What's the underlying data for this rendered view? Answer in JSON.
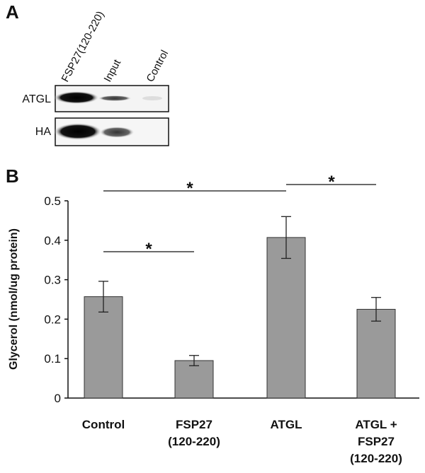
{
  "panel_a": {
    "label": "A",
    "columns": [
      "FSP27(120-220)",
      "Input",
      "Control"
    ],
    "rows": [
      "ATGL",
      "HA"
    ]
  },
  "chart_data": {
    "type": "bar",
    "panel_label": "B",
    "y_label": "Glycerol (nmol/ug protein)",
    "categories": [
      "Control",
      "FSP27\n(120-220)",
      "ATGL",
      "ATGL +\nFSP27\n(120-220)"
    ],
    "values": [
      0.257,
      0.095,
      0.407,
      0.225
    ],
    "errors": [
      0.039,
      0.013,
      0.053,
      0.03
    ],
    "color": "#9a9a9a",
    "ylim": [
      0,
      0.5
    ],
    "yticks": [
      0,
      0.1,
      0.2,
      0.3,
      0.4,
      0.5
    ],
    "annotations": [
      "*",
      "*",
      "*"
    ]
  }
}
